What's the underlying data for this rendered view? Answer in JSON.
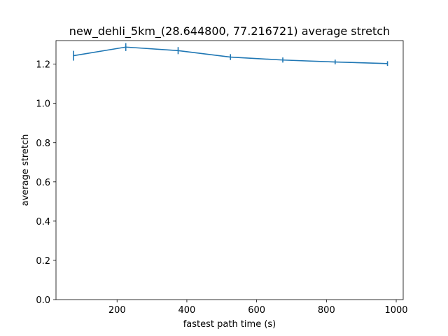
{
  "chart_data": {
    "type": "line",
    "title": "new_dehli_5km_(28.644800, 77.216721) average stretch",
    "xlabel": "fastest path time (s)",
    "ylabel": "average stretch",
    "xlim": [
      25,
      1020
    ],
    "ylim": [
      0,
      1.32
    ],
    "xticks": [
      200,
      400,
      600,
      800,
      1000
    ],
    "yticks": [
      0.0,
      0.2,
      0.4,
      0.6,
      0.8,
      1.0,
      1.2
    ],
    "grid": false,
    "color": "#1f77b4",
    "series": [
      {
        "x": [
          75,
          225,
          375,
          525,
          675,
          825,
          975
        ],
        "y": [
          1.243,
          1.287,
          1.269,
          1.236,
          1.221,
          1.211,
          1.203
        ],
        "yerr": [
          0.025,
          0.02,
          0.018,
          0.015,
          0.013,
          0.012,
          0.012
        ]
      }
    ]
  }
}
